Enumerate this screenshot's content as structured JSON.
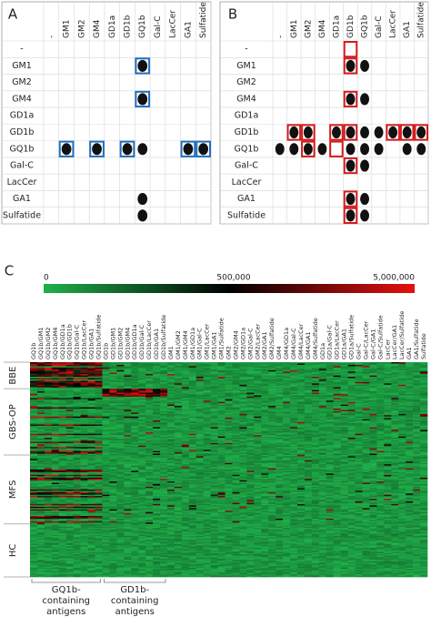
{
  "panels": {
    "a": {
      "label": "A",
      "columns": [
        "-",
        "GM1",
        "GM2",
        "GM4",
        "GD1a",
        "GD1b",
        "GQ1b",
        "Gal-C",
        "LacCer",
        "GA1",
        "Sulfatide"
      ],
      "rows": [
        "-",
        "GM1",
        "GM2",
        "GM4",
        "GD1a",
        "GD1b",
        "GQ1b",
        "Gal-C",
        "LacCer",
        "GA1",
        "Sulfatide"
      ]
    },
    "b": {
      "label": "B",
      "columns": [
        "-",
        "GM1",
        "GM2",
        "GM4",
        "GD1a",
        "GD1b",
        "GQ1b",
        "Gal-C",
        "LacCer",
        "GA1",
        "Sulfatide"
      ],
      "rows": [
        "-",
        "GM1",
        "GM2",
        "GM4",
        "GD1a",
        "GD1b",
        "GQ1b",
        "Gal-C",
        "LacCer",
        "GA1",
        "Sulfatide"
      ]
    }
  },
  "heatmap": {
    "label": "C",
    "colorbar_labels": [
      "0",
      "500,000",
      "5,000,000"
    ],
    "columns": [
      "GQ1b",
      "GQ1b/GM1",
      "GQ1b/GM2",
      "GQ1b/GM4",
      "GQ1b/GD1a",
      "GQ1b/GD1b",
      "GQ1b/Gal-C",
      "GQ1b/LacCer",
      "GQ1b/GA1",
      "GQ1b/Sulfatide",
      "GD1b",
      "GD1b/GM1",
      "GD1b/GM2",
      "GD1b/GM4",
      "GD1b/GD1a",
      "GD1b/Gal-C",
      "GD1b/LacCer",
      "GD1b/GA1",
      "GD1b/Sulfatide",
      "GM1",
      "GM1/GM2",
      "GM1/GM4",
      "GM1/GD1a",
      "GM1/Gal-C",
      "GM1/LacCer",
      "GM1/GA1",
      "GM1/Sulfatide",
      "GM2",
      "GM2/GM4",
      "GM2/GD1a",
      "GM2/Gal-C",
      "GM2/LacCer",
      "GM2/GA1",
      "GM2/Sulfatide",
      "GM4",
      "GM4/GD1a",
      "GM4/Gal-C",
      "GM4/LacCer",
      "GM4/GA1",
      "GM4/Sulfatide",
      "GD1a",
      "GD1a/Gal-C",
      "GD1a/LacCer",
      "GD1a/GA1",
      "GD1a/Sulfatide",
      "Gal-C",
      "Gal-C/LacCer",
      "Gal-C/GA1",
      "Gal-C/Sulfatide",
      "LacCer",
      "LacCer/GA1",
      "LacCer/Sulfatide",
      "GA1",
      "GA1/Sulfatide",
      "Sulfatide"
    ],
    "groups": [
      "BBE",
      "GBS-OP",
      "MFS",
      "HC"
    ],
    "brackets": [
      {
        "lines": [
          "GQ1b-",
          "containing",
          "antigens"
        ]
      },
      {
        "lines": [
          "GD1b-",
          "containing",
          "antigens"
        ]
      }
    ]
  }
}
